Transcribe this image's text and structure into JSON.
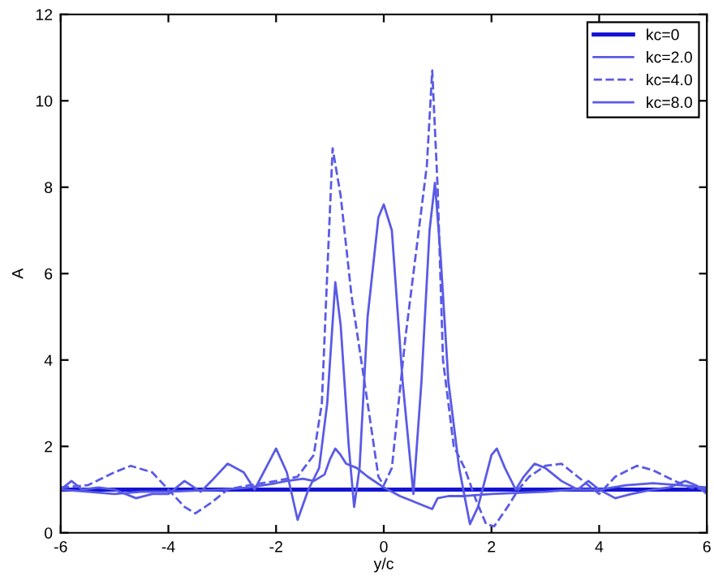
{
  "chart_data": {
    "type": "line",
    "xlabel": "y/c",
    "ylabel": "A",
    "xlim": [
      -6,
      6
    ],
    "ylim": [
      0,
      12
    ],
    "xticks": [
      -6,
      -4,
      -2,
      0,
      2,
      4,
      6
    ],
    "yticks": [
      0,
      2,
      4,
      6,
      8,
      10,
      12
    ],
    "grid": false,
    "legend": "top right",
    "series": [
      {
        "name": "kc=0",
        "color": "#1414d2",
        "line_style": "solid",
        "x": [
          -6,
          6
        ],
        "values": [
          1.0,
          1.0
        ]
      },
      {
        "name": "kc=2.0",
        "color": "#5a5ae6",
        "line_style": "solid",
        "x": [
          -6,
          -5.5,
          -5.0,
          -4.5,
          -4.0,
          -3.0,
          -2.5,
          -2.0,
          -1.8,
          -1.5,
          -1.3,
          -1.1,
          -1.0,
          -0.9,
          -0.8,
          -0.7,
          -0.5,
          -0.3,
          0.0,
          0.3,
          0.6,
          0.9,
          1.0,
          1.2,
          1.5,
          2.0,
          3.0,
          3.5,
          4.0,
          4.5,
          5.0,
          5.5,
          6.0
        ],
        "values": [
          1.0,
          0.95,
          0.9,
          0.95,
          0.95,
          1.0,
          1.05,
          1.15,
          1.2,
          1.25,
          1.2,
          1.35,
          1.7,
          1.95,
          1.8,
          1.6,
          1.5,
          1.3,
          1.05,
          0.85,
          0.7,
          0.55,
          0.8,
          0.85,
          0.85,
          0.9,
          0.95,
          1.0,
          1.0,
          1.1,
          1.15,
          1.1,
          1.05
        ]
      },
      {
        "name": "kc=4.0",
        "color": "#5a5ae6",
        "line_style": "dashed",
        "x": [
          -6,
          -5.5,
          -5.0,
          -4.7,
          -4.3,
          -4.0,
          -3.7,
          -3.5,
          -3.2,
          -2.9,
          -2.5,
          -2.0,
          -1.6,
          -1.3,
          -1.15,
          -1.05,
          -0.95,
          -0.8,
          -0.6,
          -0.3,
          -0.1,
          0.0,
          0.15,
          0.4,
          0.65,
          0.8,
          0.9,
          1.0,
          1.1,
          1.3,
          1.5,
          1.7,
          1.9,
          2.05,
          2.3,
          2.5,
          2.7,
          3.0,
          3.3,
          3.6,
          4.0,
          4.3,
          4.7,
          5.0,
          5.4,
          5.7,
          6.0
        ],
        "values": [
          1.05,
          1.1,
          1.4,
          1.55,
          1.4,
          1.0,
          0.6,
          0.45,
          0.7,
          1.0,
          1.1,
          1.2,
          1.3,
          1.8,
          3.0,
          6.0,
          8.9,
          7.8,
          5.5,
          3.0,
          1.3,
          1.1,
          1.5,
          4.5,
          7.0,
          8.5,
          10.7,
          8.0,
          4.0,
          2.0,
          1.5,
          0.8,
          0.2,
          0.15,
          0.6,
          1.0,
          1.3,
          1.55,
          1.6,
          1.3,
          0.9,
          1.3,
          1.55,
          1.45,
          1.2,
          1.05,
          1.0
        ]
      },
      {
        "name": "kc=8.0",
        "color": "#5a5ae6",
        "line_style": "solid",
        "x": [
          -6,
          -5.8,
          -5.6,
          -5.3,
          -5.0,
          -4.6,
          -4.3,
          -4.0,
          -3.7,
          -3.4,
          -3.2,
          -2.9,
          -2.6,
          -2.4,
          -2.0,
          -1.8,
          -1.6,
          -1.4,
          -1.2,
          -1.05,
          -0.9,
          -0.8,
          -0.65,
          -0.55,
          -0.45,
          -0.3,
          -0.1,
          0.0,
          0.15,
          0.35,
          0.55,
          0.7,
          0.85,
          0.95,
          1.05,
          1.2,
          1.4,
          1.6,
          1.75,
          2.0,
          2.1,
          2.25,
          2.45,
          2.6,
          2.8,
          3.0,
          3.3,
          3.6,
          3.8,
          4.0,
          4.3,
          4.6,
          5.0,
          5.3,
          5.6,
          5.8,
          6.0
        ],
        "values": [
          1.0,
          1.2,
          1.0,
          1.05,
          1.0,
          0.8,
          0.9,
          0.9,
          1.2,
          0.95,
          1.2,
          1.6,
          1.4,
          1.0,
          1.95,
          1.4,
          0.3,
          1.0,
          1.5,
          3.0,
          5.8,
          4.8,
          2.0,
          0.6,
          1.5,
          5.0,
          7.3,
          7.6,
          7.0,
          3.5,
          0.9,
          3.5,
          7.0,
          8.1,
          6.5,
          3.5,
          1.5,
          0.2,
          0.6,
          1.8,
          1.95,
          1.5,
          1.0,
          1.3,
          1.6,
          1.5,
          1.2,
          1.0,
          1.2,
          1.0,
          0.8,
          0.9,
          1.0,
          1.05,
          1.2,
          1.1,
          0.9
        ]
      }
    ]
  }
}
